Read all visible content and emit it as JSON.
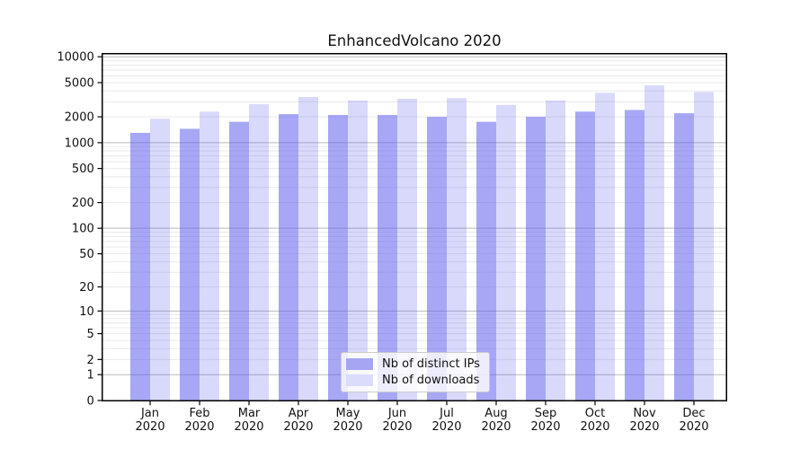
{
  "chart_data": {
    "type": "bar",
    "title": "EnhancedVolcano 2020",
    "categories": [
      "Jan 2020",
      "Feb 2020",
      "Mar 2020",
      "Apr 2020",
      "May 2020",
      "Jun 2020",
      "Jul 2020",
      "Aug 2020",
      "Sep 2020",
      "Oct 2020",
      "Nov 2020",
      "Dec 2020"
    ],
    "series": [
      {
        "key": "distinct-ips",
        "name": "Nb of distinct IPs",
        "fill": "rgba(95,95,238,0.55)",
        "legend_color": "#a5a5f4",
        "values": [
          1300,
          1450,
          1750,
          2150,
          2100,
          2100,
          2000,
          1750,
          2000,
          2300,
          2400,
          2200
        ]
      },
      {
        "key": "downloads",
        "name": "Nb of downloads",
        "fill": "rgba(95,95,238,0.24)",
        "legend_color": "#dbdbfb",
        "values": [
          1900,
          2300,
          2800,
          3400,
          3100,
          3250,
          3300,
          2750,
          3100,
          3800,
          4650,
          3900
        ]
      }
    ],
    "xlabel": "",
    "ylabel": "",
    "yscale": "log1p",
    "yticks": [
      0,
      1,
      2,
      5,
      10,
      20,
      50,
      100,
      200,
      500,
      1000,
      2000,
      5000,
      10000
    ],
    "ylim": [
      0,
      11500
    ],
    "grid": true,
    "grid_major_values": [
      1,
      10,
      100,
      1000,
      10000
    ],
    "legend_position": "bottom-center"
  }
}
